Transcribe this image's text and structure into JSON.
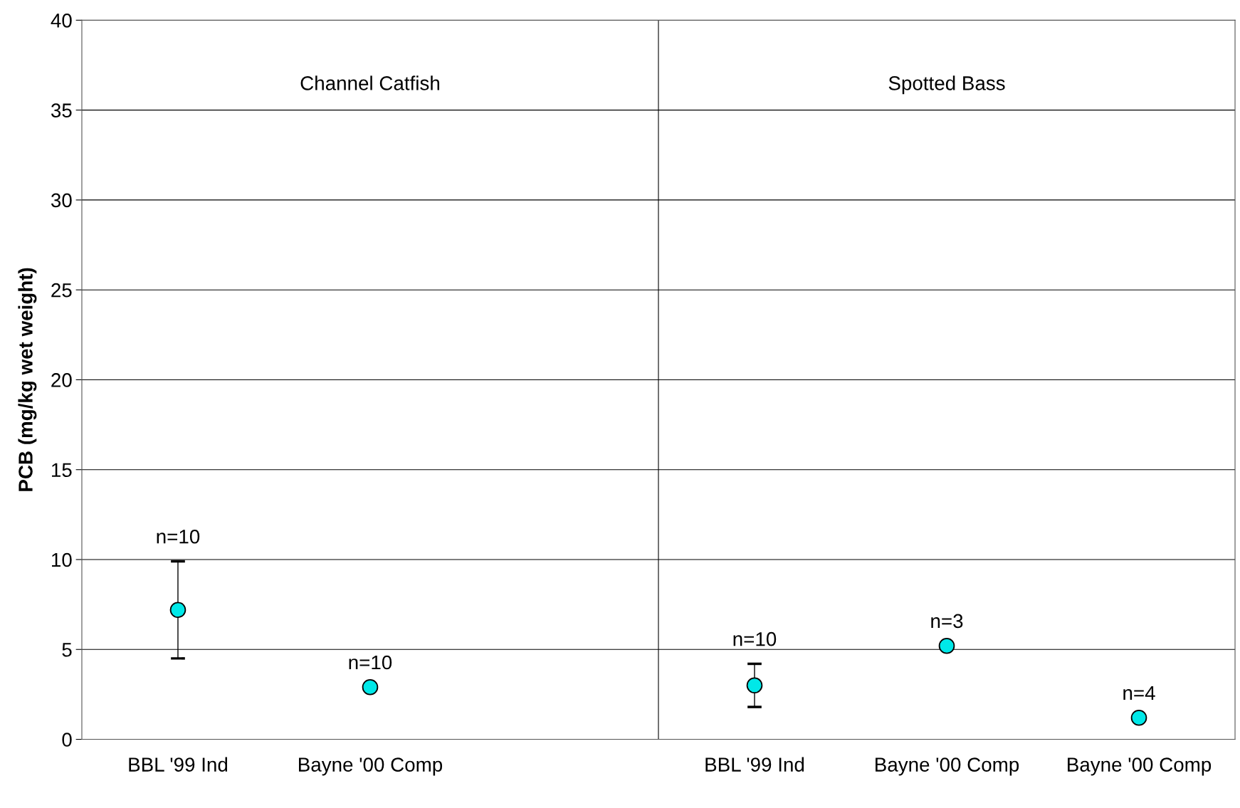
{
  "chart_data": {
    "type": "scatter",
    "ylabel": "PCB (mg/kg wet weight)",
    "categories": [
      "BBL '99 Ind",
      "Bayne '00 Comp",
      null,
      "BBL '99 Ind",
      "Bayne '00 Comp",
      "Bayne '00 Comp"
    ],
    "series": [
      {
        "color": "#00e8e8",
        "values": [
          7.2,
          2.9,
          null,
          3.0,
          5.2,
          1.2
        ],
        "errors": [
          [
            4.5,
            9.9
          ],
          null,
          null,
          [
            1.8,
            4.2
          ],
          null,
          null
        ]
      }
    ],
    "ylim": [
      0,
      40
    ],
    "yticks": [
      0,
      5,
      10,
      15,
      20,
      25,
      30,
      35,
      40
    ],
    "grid": "y",
    "marker": "circle",
    "annotations": [
      "Channel Catfish",
      "Spotted Bass",
      "n=10",
      "n=10",
      "n=10",
      "n=3",
      "n=4"
    ]
  }
}
